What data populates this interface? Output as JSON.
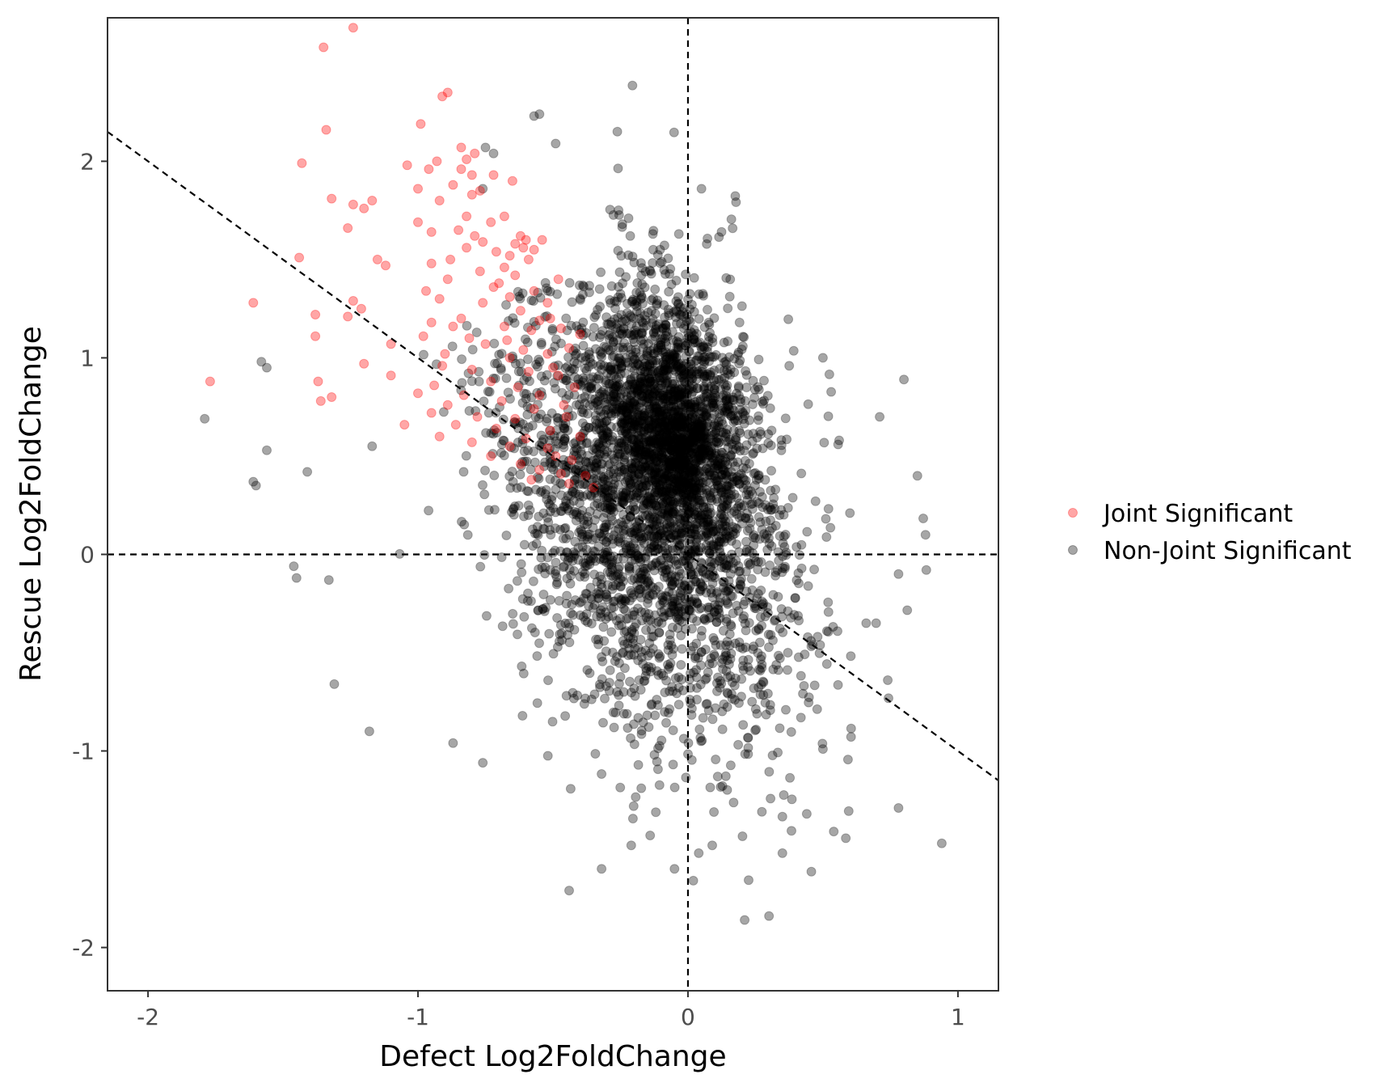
{
  "chart_data": {
    "type": "scatter",
    "title": "",
    "xlabel": "Defect Log2FoldChange",
    "ylabel": "Rescue Log2FoldChange",
    "xlim": [
      -2.15,
      1.15
    ],
    "ylim": [
      -2.22,
      2.73
    ],
    "x_ticks": [
      -2,
      -1,
      0,
      1
    ],
    "x_tick_labels": [
      "-2",
      "-1",
      "0",
      "1"
    ],
    "y_ticks": [
      -2,
      -1,
      0,
      1,
      2
    ],
    "y_tick_labels": [
      "-2",
      "-1",
      "0",
      "1",
      "2"
    ],
    "grid": false,
    "legend": {
      "placement": "right"
    },
    "reference_lines": [
      {
        "type": "vertical",
        "x": 0,
        "style": "dashed"
      },
      {
        "type": "horizontal",
        "y": 0,
        "style": "dashed"
      },
      {
        "type": "line",
        "slope": -1,
        "intercept": 0,
        "style": "dashed"
      }
    ],
    "series": [
      {
        "name": "Joint Significant",
        "color": "#ff0000",
        "opacity": 0.35,
        "points": [
          [
            -1.24,
            2.68
          ],
          [
            -1.35,
            2.58
          ],
          [
            -0.89,
            2.35
          ],
          [
            -0.91,
            2.33
          ],
          [
            -0.99,
            2.19
          ],
          [
            -1.34,
            2.16
          ],
          [
            -0.84,
            2.07
          ],
          [
            -0.79,
            2.04
          ],
          [
            -0.82,
            2.01
          ],
          [
            -0.93,
            2.0
          ],
          [
            -1.43,
            1.99
          ],
          [
            -1.04,
            1.98
          ],
          [
            -0.96,
            1.96
          ],
          [
            -0.84,
            1.96
          ],
          [
            -0.8,
            1.93
          ],
          [
            -0.72,
            1.93
          ],
          [
            -0.65,
            1.9
          ],
          [
            -0.87,
            1.88
          ],
          [
            -1.0,
            1.86
          ],
          [
            -0.77,
            1.85
          ],
          [
            -0.8,
            1.83
          ],
          [
            -1.32,
            1.81
          ],
          [
            -1.17,
            1.8
          ],
          [
            -0.92,
            1.8
          ],
          [
            -1.24,
            1.78
          ],
          [
            -1.2,
            1.76
          ],
          [
            -0.82,
            1.72
          ],
          [
            -0.68,
            1.72
          ],
          [
            -0.73,
            1.69
          ],
          [
            -1.0,
            1.69
          ],
          [
            -1.26,
            1.66
          ],
          [
            -0.85,
            1.65
          ],
          [
            -0.95,
            1.64
          ],
          [
            -0.79,
            1.62
          ],
          [
            -0.62,
            1.62
          ],
          [
            -0.6,
            1.6
          ],
          [
            -0.76,
            1.59
          ],
          [
            -0.82,
            1.56
          ],
          [
            -0.71,
            1.54
          ],
          [
            -0.66,
            1.52
          ],
          [
            -0.59,
            1.5
          ],
          [
            -1.44,
            1.51
          ],
          [
            -0.88,
            1.5
          ],
          [
            -1.15,
            1.5
          ],
          [
            -0.95,
            1.48
          ],
          [
            -1.12,
            1.47
          ],
          [
            -0.68,
            1.46
          ],
          [
            -0.77,
            1.44
          ],
          [
            -0.64,
            1.42
          ],
          [
            -0.89,
            1.4
          ],
          [
            -0.7,
            1.38
          ],
          [
            -0.72,
            1.36
          ],
          [
            -0.97,
            1.34
          ],
          [
            -0.57,
            1.34
          ],
          [
            -0.66,
            1.31
          ],
          [
            -1.61,
            1.28
          ],
          [
            -1.24,
            1.29
          ],
          [
            -0.92,
            1.3
          ],
          [
            -0.76,
            1.28
          ],
          [
            -0.52,
            1.28
          ],
          [
            -1.21,
            1.25
          ],
          [
            -0.62,
            1.24
          ],
          [
            -1.38,
            1.22
          ],
          [
            -1.26,
            1.21
          ],
          [
            -0.84,
            1.2
          ],
          [
            -0.55,
            1.19
          ],
          [
            -0.95,
            1.18
          ],
          [
            -0.68,
            1.16
          ],
          [
            -0.87,
            1.16
          ],
          [
            -0.47,
            1.15
          ],
          [
            -0.58,
            1.14
          ],
          [
            -1.38,
            1.11
          ],
          [
            -0.98,
            1.11
          ],
          [
            -0.81,
            1.1
          ],
          [
            -0.67,
            1.09
          ],
          [
            -1.1,
            1.07
          ],
          [
            -0.75,
            1.07
          ],
          [
            -0.61,
            1.04
          ],
          [
            -0.9,
            1.02
          ],
          [
            -0.52,
            1.02
          ],
          [
            -0.66,
            1.0
          ],
          [
            -1.2,
            0.97
          ],
          [
            -0.91,
            0.96
          ],
          [
            -0.8,
            0.94
          ],
          [
            -0.59,
            0.93
          ],
          [
            -1.1,
            0.91
          ],
          [
            -0.48,
            0.91
          ],
          [
            -1.37,
            0.88
          ],
          [
            -1.77,
            0.88
          ],
          [
            -0.73,
            0.88
          ],
          [
            -0.94,
            0.86
          ],
          [
            -0.63,
            0.85
          ],
          [
            -1.0,
            0.82
          ],
          [
            -0.83,
            0.81
          ],
          [
            -0.55,
            0.81
          ],
          [
            -1.32,
            0.8
          ],
          [
            -1.36,
            0.78
          ],
          [
            -0.69,
            0.78
          ],
          [
            -0.89,
            0.76
          ],
          [
            -0.46,
            0.76
          ],
          [
            -0.57,
            0.74
          ],
          [
            -0.95,
            0.72
          ],
          [
            -0.78,
            0.7
          ],
          [
            -0.64,
            0.69
          ],
          [
            -1.05,
            0.66
          ],
          [
            -0.86,
            0.66
          ],
          [
            -0.71,
            0.64
          ],
          [
            -0.51,
            0.63
          ],
          [
            -0.92,
            0.6
          ],
          [
            -0.6,
            0.59
          ],
          [
            -0.8,
            0.57
          ],
          [
            -0.66,
            0.55
          ],
          [
            -0.52,
            0.54
          ],
          [
            -0.73,
            0.5
          ],
          [
            -0.43,
            0.48
          ],
          [
            -0.62,
            0.46
          ],
          [
            -0.55,
            0.43
          ],
          [
            -0.47,
            0.41
          ],
          [
            -0.38,
            0.4
          ],
          [
            -0.44,
            0.36
          ],
          [
            -0.35,
            0.34
          ],
          [
            -0.58,
            0.38
          ],
          [
            -0.49,
            0.5
          ],
          [
            -0.4,
            0.6
          ],
          [
            -0.45,
            0.7
          ],
          [
            -0.42,
            0.85
          ],
          [
            -0.5,
            0.95
          ],
          [
            -0.44,
            1.05
          ],
          [
            -0.4,
            1.12
          ],
          [
            -0.54,
            1.6
          ],
          [
            -0.57,
            1.55
          ],
          [
            -0.61,
            1.56
          ],
          [
            -0.64,
            1.58
          ],
          [
            -0.48,
            1.4
          ],
          [
            -0.51,
            1.2
          ]
        ]
      },
      {
        "name": "Non-Joint Significant",
        "color": "#000000",
        "opacity": 0.35,
        "n_points": 4200,
        "center": [
          -0.12,
          0.45
        ],
        "notable_points": [
          [
            -0.55,
            2.24
          ],
          [
            -0.57,
            2.23
          ],
          [
            -0.49,
            2.09
          ],
          [
            -0.75,
            2.07
          ],
          [
            -0.72,
            2.04
          ],
          [
            -0.76,
            1.86
          ],
          [
            0.05,
            1.86
          ],
          [
            -0.22,
            1.71
          ],
          [
            -0.13,
            1.63
          ],
          [
            -1.79,
            0.69
          ],
          [
            -1.58,
            0.98
          ],
          [
            -1.56,
            0.95
          ],
          [
            -1.61,
            0.37
          ],
          [
            -1.6,
            0.35
          ],
          [
            -1.56,
            0.53
          ],
          [
            -1.46,
            -0.06
          ],
          [
            -1.45,
            -0.12
          ],
          [
            -1.31,
            -0.66
          ],
          [
            -1.18,
            -0.9
          ],
          [
            -0.87,
            -0.96
          ],
          [
            -0.76,
            -1.06
          ],
          [
            -0.44,
            -1.71
          ],
          [
            -0.32,
            -1.6
          ],
          [
            0.21,
            -1.86
          ],
          [
            0.3,
            -1.84
          ],
          [
            0.94,
            -1.47
          ],
          [
            0.78,
            -1.29
          ],
          [
            0.5,
            -0.99
          ],
          [
            0.71,
            0.7
          ],
          [
            0.8,
            0.89
          ],
          [
            0.85,
            0.4
          ],
          [
            0.88,
            0.1
          ],
          [
            0.78,
            -0.1
          ],
          [
            0.66,
            -0.35
          ],
          [
            0.74,
            -0.64
          ],
          [
            0.35,
            -1.52
          ],
          [
            0.04,
            -1.52
          ],
          [
            -0.05,
            -1.6
          ],
          [
            0.02,
            -1.66
          ],
          [
            0.54,
            -1.41
          ],
          [
            0.44,
            -1.32
          ],
          [
            -0.14,
            -1.43
          ],
          [
            -0.21,
            -1.48
          ],
          [
            0.09,
            -1.48
          ],
          [
            0.5,
            1.0
          ],
          [
            0.56,
            0.58
          ],
          [
            0.6,
            0.21
          ],
          [
            -1.17,
            0.55
          ],
          [
            -1.41,
            0.42
          ],
          [
            -1.33,
            -0.13
          ]
        ]
      }
    ]
  }
}
